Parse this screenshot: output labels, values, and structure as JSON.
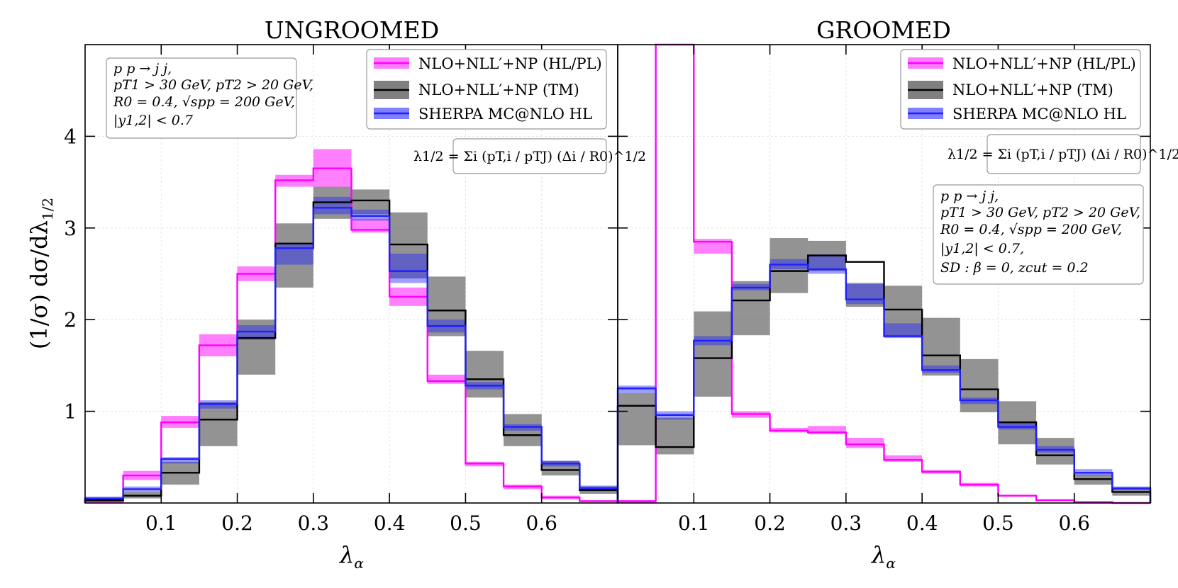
{
  "chart_data": [
    {
      "type": "line",
      "title": "UNGROOMED",
      "xlabel": "λα",
      "ylabel": "(1/σ) dσ/dλ1/2",
      "xlim": [
        0,
        0.7
      ],
      "ylim": [
        0,
        5
      ],
      "x_ticks": [
        "0.1",
        "0.2",
        "0.3",
        "0.4",
        "0.5",
        "0.6"
      ],
      "y_ticks": [
        "1",
        "2",
        "3",
        "4"
      ],
      "grid": true,
      "legend_position": "top-right",
      "bin_edges": [
        0,
        0.05,
        0.1,
        0.15,
        0.2,
        0.25,
        0.3,
        0.35,
        0.4,
        0.45,
        0.5,
        0.55,
        0.6,
        0.65,
        0.7
      ],
      "series": [
        {
          "name": "NLO+NLL′+NP (HL/PL)",
          "color": "#ff00ff",
          "values": [
            0.02,
            0.3,
            0.88,
            1.72,
            2.5,
            3.52,
            3.65,
            2.98,
            2.25,
            1.33,
            0.43,
            0.18,
            0.06,
            0.02
          ],
          "band_low": [
            0.0,
            0.25,
            0.82,
            1.6,
            2.42,
            3.45,
            3.45,
            2.95,
            2.15,
            1.3,
            0.4,
            0.15,
            0.04,
            0.01
          ],
          "band_high": [
            0.05,
            0.35,
            0.95,
            1.84,
            2.58,
            3.58,
            3.86,
            3.1,
            2.35,
            1.4,
            0.45,
            0.2,
            0.08,
            0.03
          ]
        },
        {
          "name": "NLO+NLL′+NP (TM)",
          "color": "#000000",
          "values": [
            0.03,
            0.08,
            0.33,
            0.91,
            1.8,
            2.83,
            3.28,
            3.3,
            2.82,
            2.1,
            1.35,
            0.74,
            0.36,
            0.14
          ],
          "band_low": [
            0.02,
            0.05,
            0.2,
            0.62,
            1.4,
            2.35,
            3.1,
            3.15,
            2.45,
            1.82,
            1.15,
            0.62,
            0.3,
            0.1
          ],
          "band_high": [
            0.04,
            0.12,
            0.45,
            1.1,
            2.0,
            3.05,
            3.45,
            3.42,
            3.17,
            2.47,
            1.66,
            0.97,
            0.46,
            0.18
          ]
        },
        {
          "name": "SHERPA MC@NLO HL",
          "color": "#1f1fff",
          "values": [
            0.05,
            0.15,
            0.48,
            1.08,
            1.87,
            2.78,
            3.22,
            3.13,
            2.53,
            1.93,
            1.28,
            0.83,
            0.43,
            0.16
          ],
          "band_low": [
            0.03,
            0.12,
            0.43,
            1.03,
            1.78,
            2.6,
            3.15,
            3.08,
            2.4,
            1.86,
            1.24,
            0.79,
            0.4,
            0.14
          ],
          "band_high": [
            0.07,
            0.18,
            0.5,
            1.12,
            1.94,
            2.83,
            3.34,
            3.2,
            2.72,
            2.0,
            1.32,
            0.86,
            0.46,
            0.19
          ]
        }
      ]
    },
    {
      "type": "line",
      "title": "GROOMED",
      "xlabel": "λα",
      "xlim": [
        0,
        0.7
      ],
      "ylim": [
        0,
        5
      ],
      "x_ticks": [
        "0.1",
        "0.2",
        "0.3",
        "0.4",
        "0.5",
        "0.6"
      ],
      "grid": true,
      "legend_position": "top-right",
      "bin_edges": [
        0,
        0.05,
        0.1,
        0.15,
        0.2,
        0.25,
        0.3,
        0.35,
        0.4,
        0.45,
        0.5,
        0.55,
        0.6,
        0.65,
        0.7
      ],
      "series": [
        {
          "name": "NLO+NLL′+NP (HL/PL)",
          "color": "#ff00ff",
          "values": [
            0.02,
            5.5,
            2.85,
            0.97,
            0.79,
            0.77,
            0.64,
            0.47,
            0.34,
            0.2,
            0.08,
            0.03,
            0.01,
            0.0
          ],
          "band_low": [
            0.0,
            5.5,
            2.72,
            0.93,
            0.77,
            0.75,
            0.6,
            0.45,
            0.32,
            0.18,
            0.07,
            0.02,
            0.0,
            0.0
          ],
          "band_high": [
            0.03,
            5.5,
            2.88,
            1.0,
            0.82,
            0.84,
            0.71,
            0.52,
            0.36,
            0.22,
            0.09,
            0.04,
            0.02,
            0.01
          ]
        },
        {
          "name": "NLO+NLL′+NP (TM)",
          "color": "#000000",
          "values": [
            1.06,
            0.61,
            1.58,
            2.21,
            2.53,
            2.7,
            2.63,
            2.11,
            1.61,
            1.24,
            0.88,
            0.52,
            0.26,
            0.12
          ],
          "band_low": [
            0.63,
            0.53,
            1.16,
            1.83,
            2.29,
            2.53,
            2.14,
            1.81,
            1.39,
            0.99,
            0.64,
            0.42,
            0.2,
            0.08
          ],
          "band_high": [
            1.2,
            0.93,
            2.09,
            2.42,
            2.89,
            2.86,
            2.4,
            2.37,
            2.02,
            1.57,
            1.11,
            0.71,
            0.31,
            0.16
          ]
        },
        {
          "name": "SHERPA MC@NLO HL",
          "color": "#1f1fff",
          "values": [
            1.25,
            0.96,
            1.77,
            2.35,
            2.6,
            2.55,
            2.22,
            1.82,
            1.45,
            1.12,
            0.83,
            0.58,
            0.33,
            0.16
          ],
          "band_low": [
            1.2,
            0.91,
            1.72,
            2.32,
            2.55,
            2.5,
            2.17,
            1.8,
            1.42,
            1.08,
            0.8,
            0.55,
            0.3,
            0.14
          ],
          "band_high": [
            1.28,
            1.0,
            1.82,
            2.39,
            2.66,
            2.71,
            2.39,
            1.96,
            1.5,
            1.15,
            0.87,
            0.62,
            0.37,
            0.18
          ]
        }
      ]
    }
  ],
  "ungroomed_box": {
    "line1": "p p → j j,",
    "line2": "pT1 > 30 GeV,  pT2 > 20 GeV,",
    "line3": "R0 = 0.4, √spp = 200 GeV,",
    "line4": "|y1,2| < 0.7"
  },
  "groomed_box": {
    "line1": "p p → j j,",
    "line2": "pT1 > 30 GeV,  pT2 > 20 GeV,",
    "line3": "R0 = 0.4, √spp = 200 GeV,",
    "line4": "|y1,2| < 0.7,",
    "line5": "SD : β = 0, zcut = 0.2"
  },
  "formula": "λ1/2 = Σi (pT,i / pTJ) (Δi / R0)^1/2"
}
